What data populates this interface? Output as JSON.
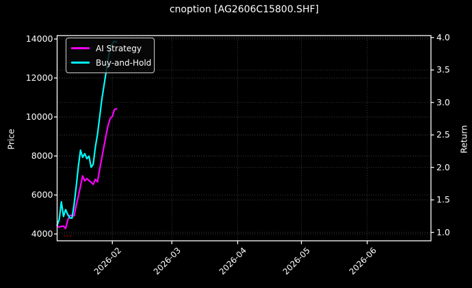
{
  "title": "cnoption [AG2606C15800.SHF]",
  "colors": {
    "background": "#000000",
    "text": "#ffffff",
    "grid": "#4a4a4a",
    "spine": "#ffffff",
    "ai_strategy": "#ff00ff",
    "buy_and_hold": "#00ffff",
    "annotation_red": "#8b0000"
  },
  "legend": {
    "items": [
      {
        "label": "AI Strategy",
        "color": "#ff00ff"
      },
      {
        "label": "Buy-and-Hold",
        "color": "#00ffff"
      }
    ]
  },
  "axes": {
    "left": {
      "label": "Price",
      "ticks": [
        4000,
        6000,
        8000,
        10000,
        12000,
        14000
      ]
    },
    "right": {
      "label": "Return",
      "ticks": [
        1.0,
        1.5,
        2.0,
        2.5,
        3.0,
        3.5,
        4.0
      ]
    },
    "x": {
      "ticks": [
        "2026-02",
        "2026-03",
        "2026-04",
        "2026-05",
        "2026-06"
      ]
    }
  },
  "chart_data": {
    "type": "line",
    "title": "cnoption [AG2606C15800.SHF]",
    "xlabel": "",
    "ylabel_left": "Price",
    "ylabel_right": "Return",
    "grid": true,
    "legend_position": "upper left",
    "xlim": [
      "2026-01-06",
      "2026-07-01"
    ],
    "ylim_left": [
      3650,
      14175
    ],
    "ylim_right": [
      0.87,
      4.03
    ],
    "x_ticks": [
      "2026-02",
      "2026-03",
      "2026-04",
      "2026-05",
      "2026-06"
    ],
    "y_ticks_left": [
      4000,
      6000,
      8000,
      10000,
      12000,
      14000
    ],
    "y_ticks_right": [
      1.0,
      1.5,
      2.0,
      2.5,
      3.0,
      3.5,
      4.0
    ],
    "x": [
      "2026-01-06",
      "2026-01-07",
      "2026-01-08",
      "2026-01-09",
      "2026-01-10",
      "2026-01-11",
      "2026-01-12",
      "2026-01-13",
      "2026-01-14",
      "2026-01-15",
      "2026-01-16",
      "2026-01-17",
      "2026-01-18",
      "2026-01-19",
      "2026-01-20",
      "2026-01-21",
      "2026-01-22",
      "2026-01-23",
      "2026-01-24",
      "2026-01-25",
      "2026-01-26",
      "2026-01-27",
      "2026-01-28",
      "2026-01-29",
      "2026-01-30",
      "2026-01-31",
      "2026-02-01",
      "2026-02-02",
      "2026-02-03"
    ],
    "series": [
      {
        "name": "AI Strategy",
        "color": "#ff00ff",
        "axis": "left",
        "values": [
          4430,
          4340,
          4390,
          4400,
          4280,
          4710,
          4950,
          4950,
          4930,
          5470,
          5940,
          6460,
          6980,
          6720,
          6840,
          6740,
          6650,
          6540,
          6800,
          6670,
          7290,
          7870,
          8460,
          9040,
          9570,
          9920,
          10030,
          10390,
          10420
        ]
      },
      {
        "name": "Buy-and-Hold",
        "color": "#00ffff",
        "axis": "left",
        "values": [
          4450,
          4750,
          5650,
          4900,
          5250,
          5000,
          4830,
          4810,
          5500,
          6420,
          7470,
          8300,
          7930,
          8120,
          7860,
          7990,
          7420,
          7580,
          8460,
          9100,
          9980,
          10860,
          11560,
          12260,
          12960,
          13550,
          13760,
          13880,
          13850
        ]
      }
    ],
    "annotations": [
      {
        "type": "dash",
        "date_start": "2026-01-09",
        "date_end": "2026-01-13",
        "price": 3900,
        "color": "#8b0000"
      }
    ]
  }
}
